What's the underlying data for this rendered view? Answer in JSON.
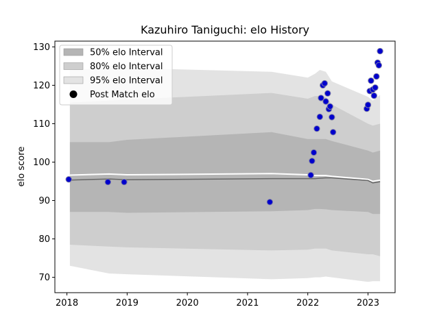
{
  "chart_data": {
    "type": "scatter",
    "title": "Kazuhiro Taniguchi: elo History",
    "xlabel": "",
    "ylabel": "elo score",
    "xlim": [
      2017.8,
      2023.45
    ],
    "ylim": [
      66,
      131.5
    ],
    "x_ticks": [
      2018,
      2019,
      2020,
      2021,
      2022,
      2023
    ],
    "x_tick_labels": [
      "2018",
      "2019",
      "2020",
      "2021",
      "2022",
      "2023"
    ],
    "y_ticks": [
      70,
      80,
      90,
      100,
      110,
      120,
      130
    ],
    "y_tick_labels": [
      "70",
      "80",
      "90",
      "100",
      "110",
      "120",
      "130"
    ],
    "grid": false,
    "legend_position": "top-left",
    "legend": [
      {
        "label": "50% elo Interval",
        "kind": "band50"
      },
      {
        "label": "80% elo Interval",
        "kind": "band80"
      },
      {
        "label": "95% elo Interval",
        "kind": "band95"
      },
      {
        "label": "Post Match elo",
        "kind": "marker"
      }
    ],
    "colors": {
      "band50": "#b5b5b5",
      "band80": "#cecece",
      "band95": "#e3e3e3",
      "mean_line": "#666666",
      "median_line": "#ffffff",
      "marker_fill": "#0000cc",
      "marker_edge": "#8080a8"
    },
    "bands": {
      "x": [
        2018.05,
        2018.7,
        2019.0,
        2021.4,
        2022.0,
        2022.12,
        2022.2,
        2022.3,
        2022.4,
        2023.0,
        2023.08,
        2023.2
      ],
      "lower95": [
        73,
        71,
        70.8,
        69.5,
        69.8,
        70,
        70,
        70.2,
        70,
        68.8,
        69,
        69
      ],
      "upper95": [
        124,
        124.5,
        124.5,
        123.5,
        122,
        123,
        124,
        123.5,
        121,
        117,
        116,
        117.5
      ],
      "lower80": [
        78.5,
        78,
        77.8,
        77,
        77.2,
        77.5,
        77.5,
        77.5,
        77,
        76,
        76,
        75.5
      ],
      "upper80": [
        115.5,
        116,
        116.3,
        118,
        116.5,
        117.2,
        117.2,
        117,
        115,
        110,
        109.5,
        110
      ],
      "lower50": [
        87,
        87,
        86.8,
        87.2,
        87.5,
        87.8,
        87.8,
        87.7,
        87.5,
        87,
        86.5,
        86.5
      ],
      "upper50": [
        105.2,
        105.2,
        105.8,
        107.8,
        106,
        106,
        106,
        106,
        105.5,
        103,
        102.5,
        103
      ],
      "mean": [
        95.3,
        95.6,
        95.4,
        95.7,
        95.7,
        95.7,
        95.8,
        95.9,
        95.9,
        95.2,
        94.6,
        94.9
      ],
      "median": [
        96.6,
        96.9,
        96.7,
        97.0,
        96.7,
        96.5,
        96.5,
        96.5,
        96.3,
        95.5,
        95.0,
        95.3
      ]
    },
    "points": {
      "x": [
        2018.03,
        2018.68,
        2018.95,
        2021.37,
        2022.05,
        2022.07,
        2022.1,
        2022.15,
        2022.2,
        2022.22,
        2022.25,
        2022.28,
        2022.3,
        2022.33,
        2022.35,
        2022.37,
        2022.4,
        2022.42,
        2022.98,
        2023.0,
        2023.03,
        2023.05,
        2023.08,
        2023.1,
        2023.12,
        2023.14,
        2023.16,
        2023.18,
        2023.2
      ],
      "y": [
        95.5,
        94.8,
        94.8,
        89.6,
        96.6,
        100.3,
        102.5,
        108.7,
        111.8,
        116.7,
        120.0,
        120.5,
        115.8,
        117.9,
        113.8,
        114.5,
        111.7,
        107.8,
        113.9,
        114.9,
        118.5,
        121.2,
        118.9,
        117.3,
        119.4,
        122.3,
        125.9,
        125.2,
        128.9
      ]
    }
  }
}
